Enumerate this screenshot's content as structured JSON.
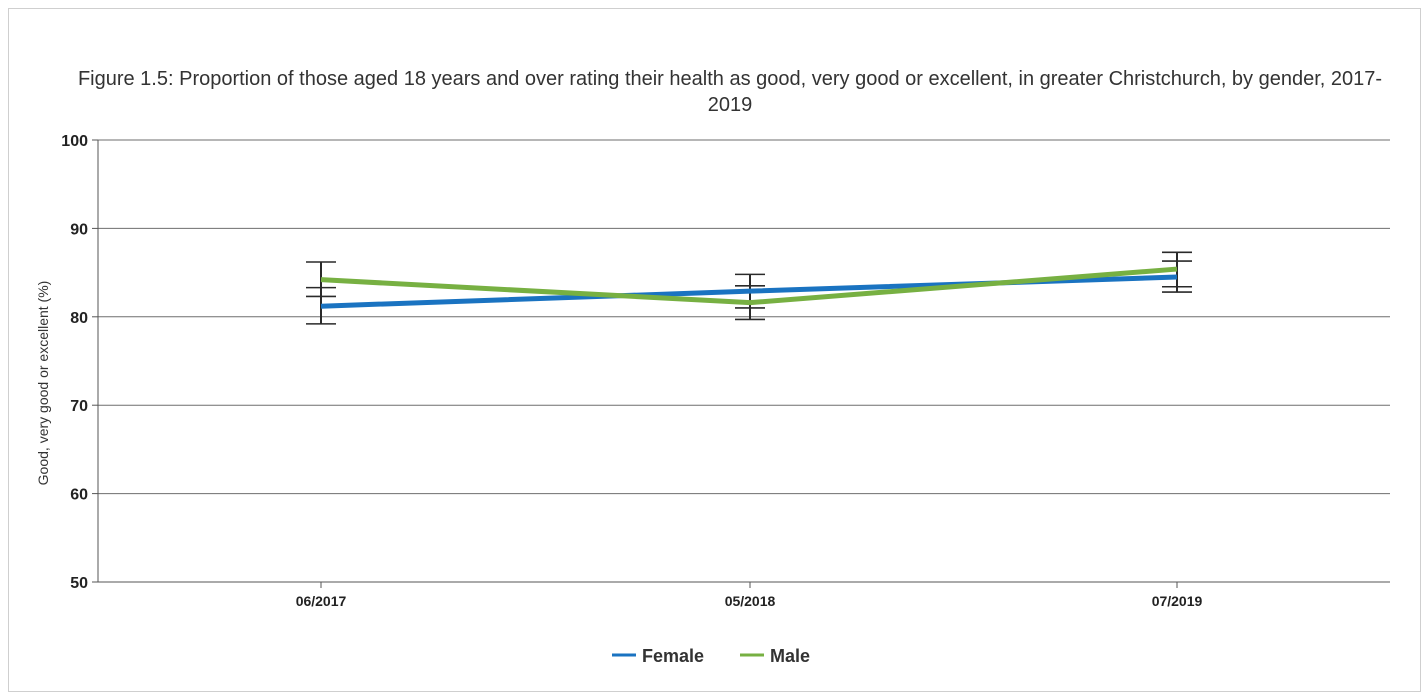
{
  "chart_data": {
    "type": "line",
    "title": "Figure 1.5: Proportion of those aged 18 years and over rating their health as good, very good or excellent, in greater Christchurch, by gender, 2017-2019",
    "xlabel": "",
    "ylabel": "Good, very good or excellent (%)",
    "categories": [
      "06/2017",
      "05/2018",
      "07/2019"
    ],
    "ylim": [
      50,
      100
    ],
    "yticks": [
      50,
      60,
      70,
      80,
      90,
      100
    ],
    "grid": true,
    "legend_position": "bottom-center",
    "series": [
      {
        "name": "Female",
        "color": "#1a73c1",
        "values": [
          81.2,
          82.9,
          84.5
        ],
        "error_low": [
          79.2,
          81.0,
          82.8
        ],
        "error_high": [
          83.3,
          84.8,
          86.3
        ]
      },
      {
        "name": "Male",
        "color": "#77b042",
        "values": [
          84.2,
          81.6,
          85.4
        ],
        "error_low": [
          82.3,
          79.7,
          83.4
        ],
        "error_high": [
          86.2,
          83.5,
          87.3
        ]
      }
    ]
  }
}
